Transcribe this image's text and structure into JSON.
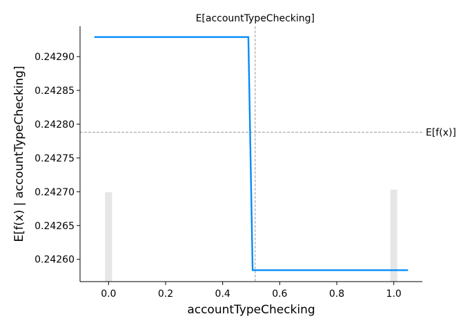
{
  "chart_data": {
    "type": "line",
    "title": "",
    "xlabel": "accountTypeChecking",
    "ylabel": "E[f(x) | accountTypeChecking]",
    "xlim": [
      -0.1,
      1.1
    ],
    "ylim": [
      0.242567,
      0.242945
    ],
    "x_ticks": [
      0.0,
      0.2,
      0.4,
      0.6,
      0.8,
      1.0
    ],
    "x_tick_labels": [
      "0.0",
      "0.2",
      "0.4",
      "0.6",
      "0.8",
      "1.0"
    ],
    "y_ticks": [
      0.2426,
      0.24265,
      0.2427,
      0.24275,
      0.2428,
      0.24285,
      0.2429
    ],
    "y_tick_labels": [
      "0.24260",
      "0.24265",
      "0.24270",
      "0.24275",
      "0.24280",
      "0.24285",
      "0.24290"
    ],
    "series": [
      {
        "color": "#008bfb",
        "x": [
          -0.05,
          0.49,
          0.505,
          1.05
        ],
        "y": [
          0.242929,
          0.242929,
          0.242584,
          0.242584
        ]
      }
    ],
    "histogram": {
      "color": "#e6e6e6",
      "bars": [
        {
          "x": 0.0,
          "relative_height": 0.7
        },
        {
          "x": 1.0,
          "relative_height": 0.72
        }
      ]
    },
    "expected_feature_value": 0.514,
    "expected_feature_label": "E[accountTypeChecking]",
    "expected_output_value": 0.242788,
    "expected_output_label": "E[f(x)]",
    "grid": false,
    "ref_line_color": "#999999"
  }
}
